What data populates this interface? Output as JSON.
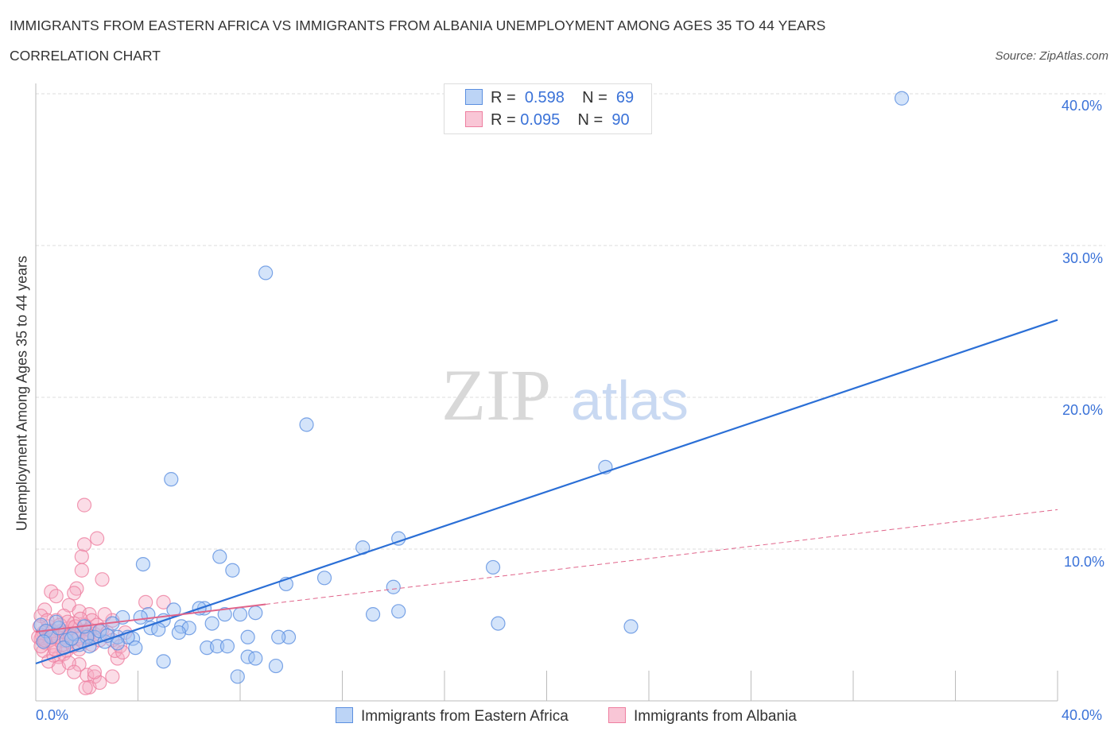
{
  "chart_data": {
    "type": "scatter",
    "title": "IMMIGRANTS FROM EASTERN AFRICA VS IMMIGRANTS FROM ALBANIA UNEMPLOYMENT AMONG AGES 35 TO 44 YEARS",
    "subtitle": "CORRELATION CHART",
    "source": "Source: ZipAtlas.com",
    "ylabel": "Unemployment Among Ages 35 to 44 years",
    "xlim": [
      0,
      40
    ],
    "ylim": [
      0,
      40
    ],
    "x_tick_labels": [
      "0.0%",
      "40.0%"
    ],
    "y_tick_labels": [
      "10.0%",
      "20.0%",
      "30.0%",
      "40.0%"
    ],
    "y_ticks": [
      10,
      20,
      30,
      40
    ],
    "watermark": "ZIPatlas",
    "legend": [
      {
        "name": "Immigrants from Eastern Africa",
        "r_label": "R =",
        "r": "0.598",
        "n_label": "N =",
        "n": "69",
        "color": "#5b8fe0"
      },
      {
        "name": "Immigrants from Albania",
        "r_label": "R =",
        "r": "0.095",
        "n_label": "N =",
        "n": "90",
        "color": "#ee7fa0"
      }
    ],
    "series": [
      {
        "name": "Immigrants from Eastern Africa",
        "color": "#5b8fe0",
        "trend": [
          [
            0,
            2.46
          ],
          [
            40,
            25.1
          ]
        ],
        "points": [
          [
            33.9,
            39.7
          ],
          [
            9.0,
            28.2
          ],
          [
            10.6,
            18.2
          ],
          [
            5.3,
            14.6
          ],
          [
            22.3,
            15.4
          ],
          [
            14.2,
            10.7
          ],
          [
            12.8,
            10.1
          ],
          [
            17.9,
            8.8
          ],
          [
            7.2,
            9.5
          ],
          [
            4.2,
            9.0
          ],
          [
            7.7,
            8.6
          ],
          [
            11.3,
            8.1
          ],
          [
            9.8,
            7.7
          ],
          [
            14.0,
            7.5
          ],
          [
            14.2,
            5.9
          ],
          [
            13.2,
            5.7
          ],
          [
            18.1,
            5.1
          ],
          [
            23.3,
            4.9
          ],
          [
            8.6,
            5.8
          ],
          [
            8.0,
            5.7
          ],
          [
            7.4,
            5.7
          ],
          [
            6.6,
            6.1
          ],
          [
            6.4,
            6.1
          ],
          [
            5.4,
            6.0
          ],
          [
            4.4,
            5.7
          ],
          [
            4.1,
            5.5
          ],
          [
            3.4,
            5.5
          ],
          [
            5.0,
            5.3
          ],
          [
            6.9,
            5.1
          ],
          [
            5.7,
            4.9
          ],
          [
            6.0,
            4.8
          ],
          [
            4.5,
            4.8
          ],
          [
            5.6,
            4.5
          ],
          [
            4.8,
            4.7
          ],
          [
            8.3,
            4.2
          ],
          [
            9.9,
            4.2
          ],
          [
            9.5,
            4.2
          ],
          [
            3.8,
            4.1
          ],
          [
            3.0,
            5.1
          ],
          [
            3.2,
            4.2
          ],
          [
            3.6,
            4.2
          ],
          [
            2.3,
            4.2
          ],
          [
            2.0,
            4.2
          ],
          [
            2.7,
            3.9
          ],
          [
            3.9,
            3.5
          ],
          [
            3.2,
            3.8
          ],
          [
            6.7,
            3.5
          ],
          [
            7.1,
            3.6
          ],
          [
            7.5,
            3.6
          ],
          [
            8.3,
            2.9
          ],
          [
            8.6,
            2.8
          ],
          [
            5.0,
            2.6
          ],
          [
            9.4,
            2.3
          ],
          [
            7.9,
            1.6
          ],
          [
            0.2,
            5.0
          ],
          [
            0.4,
            4.6
          ],
          [
            0.6,
            4.2
          ],
          [
            0.9,
            4.8
          ],
          [
            1.2,
            4.0
          ],
          [
            1.5,
            4.4
          ],
          [
            1.7,
            3.7
          ],
          [
            1.1,
            3.5
          ],
          [
            0.3,
            3.9
          ],
          [
            2.5,
            4.6
          ],
          [
            2.1,
            3.6
          ],
          [
            1.9,
            4.9
          ],
          [
            0.8,
            5.2
          ],
          [
            1.4,
            4.1
          ],
          [
            2.8,
            4.3
          ]
        ]
      },
      {
        "name": "Immigrants from Albania",
        "color": "#ee7fa0",
        "trend": [
          [
            0,
            4.55
          ],
          [
            40,
            12.6
          ]
        ],
        "points": [
          [
            1.9,
            12.9
          ],
          [
            2.4,
            10.7
          ],
          [
            1.9,
            10.3
          ],
          [
            1.8,
            9.5
          ],
          [
            1.8,
            8.6
          ],
          [
            2.6,
            8.0
          ],
          [
            4.3,
            6.5
          ],
          [
            5.0,
            6.5
          ],
          [
            1.6,
            7.4
          ],
          [
            0.6,
            7.2
          ],
          [
            0.8,
            6.9
          ],
          [
            1.5,
            7.1
          ],
          [
            1.3,
            6.3
          ],
          [
            0.35,
            6.0
          ],
          [
            1.7,
            5.9
          ],
          [
            2.1,
            5.7
          ],
          [
            2.2,
            5.3
          ],
          [
            3.0,
            5.3
          ],
          [
            2.0,
            1.7
          ],
          [
            2.3,
            1.6
          ],
          [
            3.0,
            1.6
          ],
          [
            2.1,
            0.9
          ],
          [
            1.95,
            0.85
          ],
          [
            2.5,
            1.2
          ],
          [
            2.3,
            1.9
          ],
          [
            1.7,
            2.4
          ],
          [
            1.2,
            3.3
          ],
          [
            0.9,
            2.9
          ],
          [
            3.2,
            2.8
          ],
          [
            3.1,
            3.3
          ],
          [
            0.2,
            4.1
          ],
          [
            0.3,
            4.5
          ],
          [
            0.4,
            3.8
          ],
          [
            0.5,
            4.9
          ],
          [
            0.6,
            4.3
          ],
          [
            0.7,
            3.6
          ],
          [
            0.8,
            5.3
          ],
          [
            0.9,
            4.0
          ],
          [
            1.0,
            4.6
          ],
          [
            1.1,
            5.6
          ],
          [
            1.2,
            4.2
          ],
          [
            1.3,
            3.9
          ],
          [
            1.4,
            4.8
          ],
          [
            1.5,
            5.1
          ],
          [
            1.6,
            4.4
          ],
          [
            1.7,
            3.4
          ],
          [
            1.8,
            4.6
          ],
          [
            1.9,
            5.0
          ],
          [
            2.0,
            4.1
          ],
          [
            2.1,
            4.7
          ],
          [
            2.2,
            3.7
          ],
          [
            2.3,
            4.4
          ],
          [
            2.4,
            5.0
          ],
          [
            2.5,
            4.0
          ],
          [
            2.6,
            4.7
          ],
          [
            2.8,
            4.5
          ],
          [
            3.0,
            4.0
          ],
          [
            3.3,
            3.6
          ],
          [
            3.5,
            4.5
          ],
          [
            0.2,
            5.6
          ],
          [
            0.3,
            3.3
          ],
          [
            0.5,
            2.6
          ],
          [
            0.7,
            3.0
          ],
          [
            0.9,
            2.2
          ],
          [
            1.1,
            3.1
          ],
          [
            1.3,
            2.5
          ],
          [
            1.5,
            1.9
          ],
          [
            0.15,
            4.9
          ],
          [
            0.25,
            4.3
          ],
          [
            0.45,
            5.3
          ],
          [
            0.55,
            4.0
          ],
          [
            0.65,
            4.6
          ],
          [
            0.75,
            3.4
          ],
          [
            0.85,
            4.2
          ],
          [
            0.95,
            5.0
          ],
          [
            1.05,
            3.7
          ],
          [
            1.15,
            4.5
          ],
          [
            1.25,
            5.2
          ],
          [
            1.35,
            4.3
          ],
          [
            1.45,
            3.6
          ],
          [
            1.55,
            4.9
          ],
          [
            1.65,
            4.1
          ],
          [
            1.75,
            5.4
          ],
          [
            1.85,
            3.9
          ],
          [
            2.05,
            4.3
          ],
          [
            0.1,
            4.2
          ],
          [
            0.2,
            3.6
          ],
          [
            0.35,
            4.0
          ],
          [
            2.7,
            5.7
          ],
          [
            3.4,
            3.2
          ]
        ]
      }
    ]
  }
}
